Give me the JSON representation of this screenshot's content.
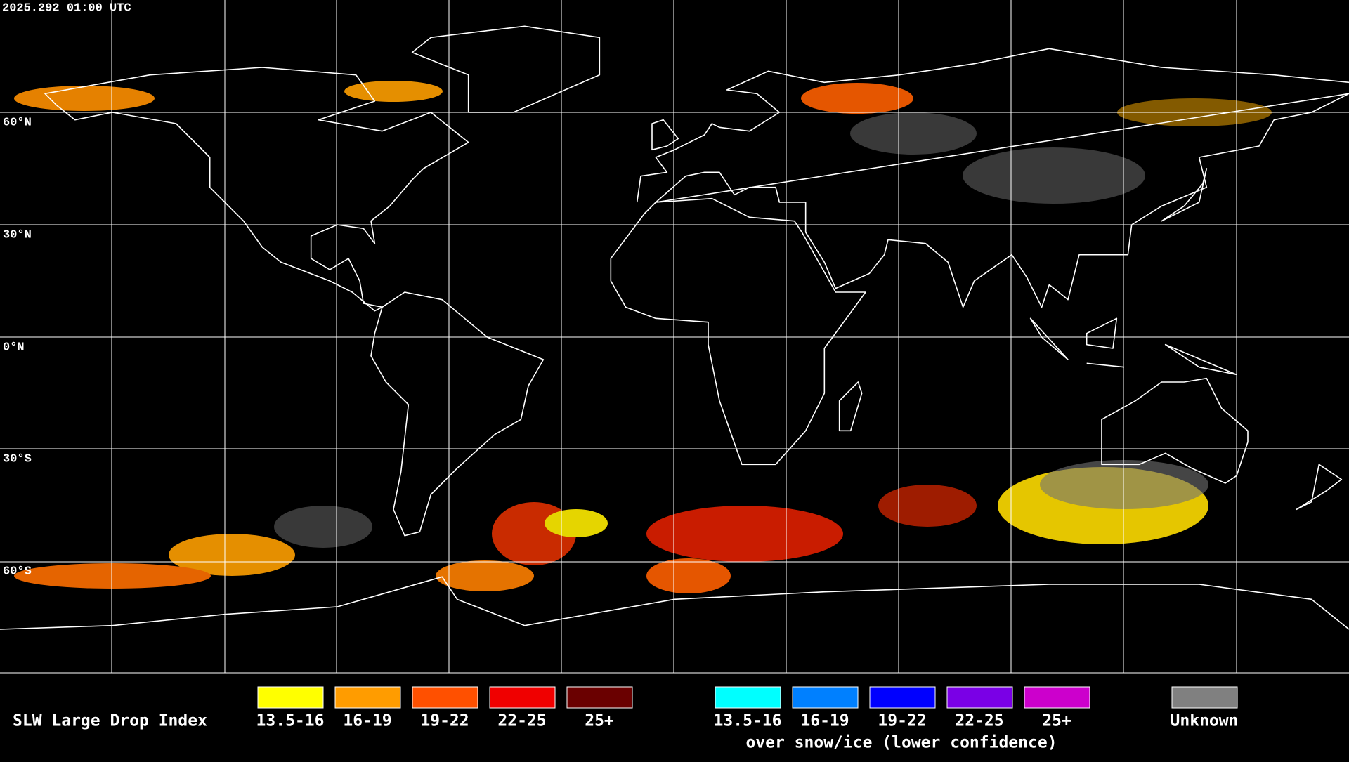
{
  "timestamp": "2025.292 01:00 UTC",
  "latitude_labels": [
    "60°N",
    "30°N",
    "0°N",
    "30°S",
    "60°S"
  ],
  "legend": {
    "title": "SLW Large Drop Index",
    "groups": [
      {
        "items": [
          {
            "label": "13.5-16",
            "color": "#ffff00"
          },
          {
            "label": "16-19",
            "color": "#ff9c00"
          },
          {
            "label": "19-22",
            "color": "#ff5000"
          },
          {
            "label": "22-25",
            "color": "#f00000"
          },
          {
            "label": "25+",
            "color": "#6a0000"
          }
        ]
      },
      {
        "items": [
          {
            "label": "13.5-16",
            "color": "#00ffff"
          },
          {
            "label": "16-19",
            "color": "#0080ff"
          },
          {
            "label": "19-22",
            "color": "#0000ff"
          },
          {
            "label": "22-25",
            "color": "#7a00e6"
          },
          {
            "label": "25+",
            "color": "#cc00cc"
          }
        ],
        "note": "over snow/ice (lower confidence)"
      }
    ],
    "unknown": {
      "label": "Unknown",
      "color": "#808080"
    }
  }
}
